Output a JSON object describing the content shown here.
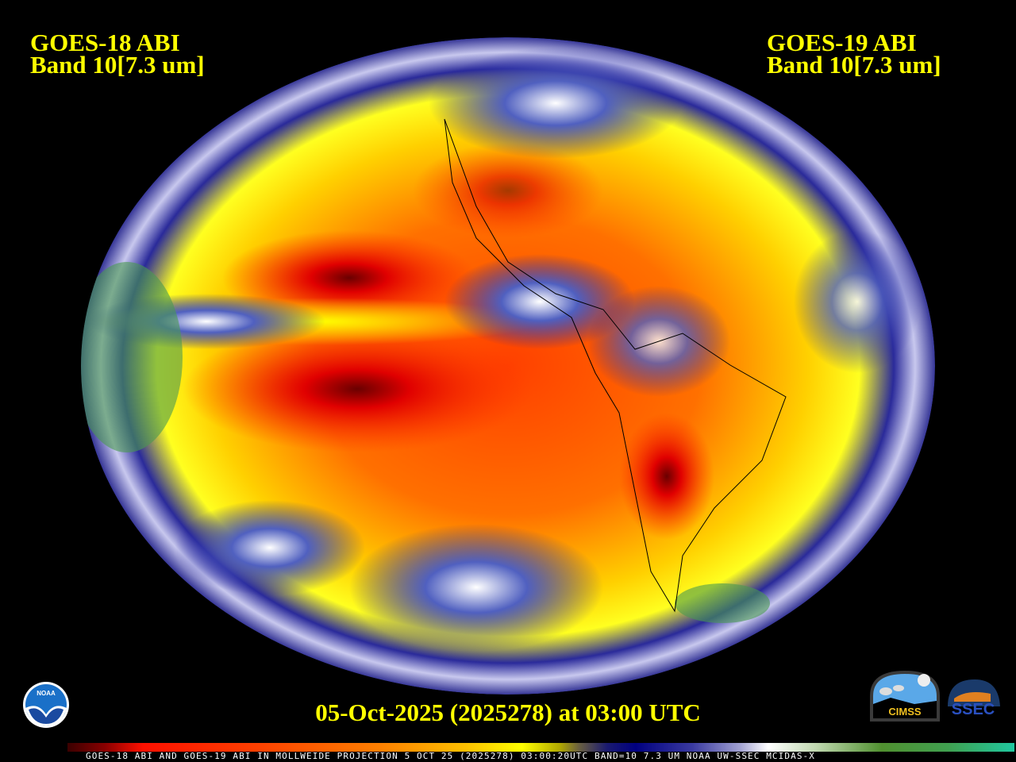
{
  "header": {
    "left_title": [
      "GOES-18 ABI",
      "Band 10[7.3 um]"
    ],
    "right_title": [
      "GOES-19 ABI",
      "Band 10[7.3 um]"
    ]
  },
  "date_label": "05-Oct-2025 (2025278) at 03:00 UTC",
  "caption": "GOES-18 ABI AND GOES-19 ABI IN MOLLWEIDE PROJECTION 5 OCT 25 (2025278) 03:00:20UTC BAND=10 7.3 UM NOAA UW-SSEC MCIDAS-X",
  "logos": {
    "noaa": "NOAA",
    "cimss": "CIMSS",
    "ssec": "SSEC"
  },
  "colors": {
    "title": "#ffff00",
    "background": "#000000",
    "dry": "#ff2000",
    "moist": "#000080",
    "cloud": "#ffffff"
  }
}
